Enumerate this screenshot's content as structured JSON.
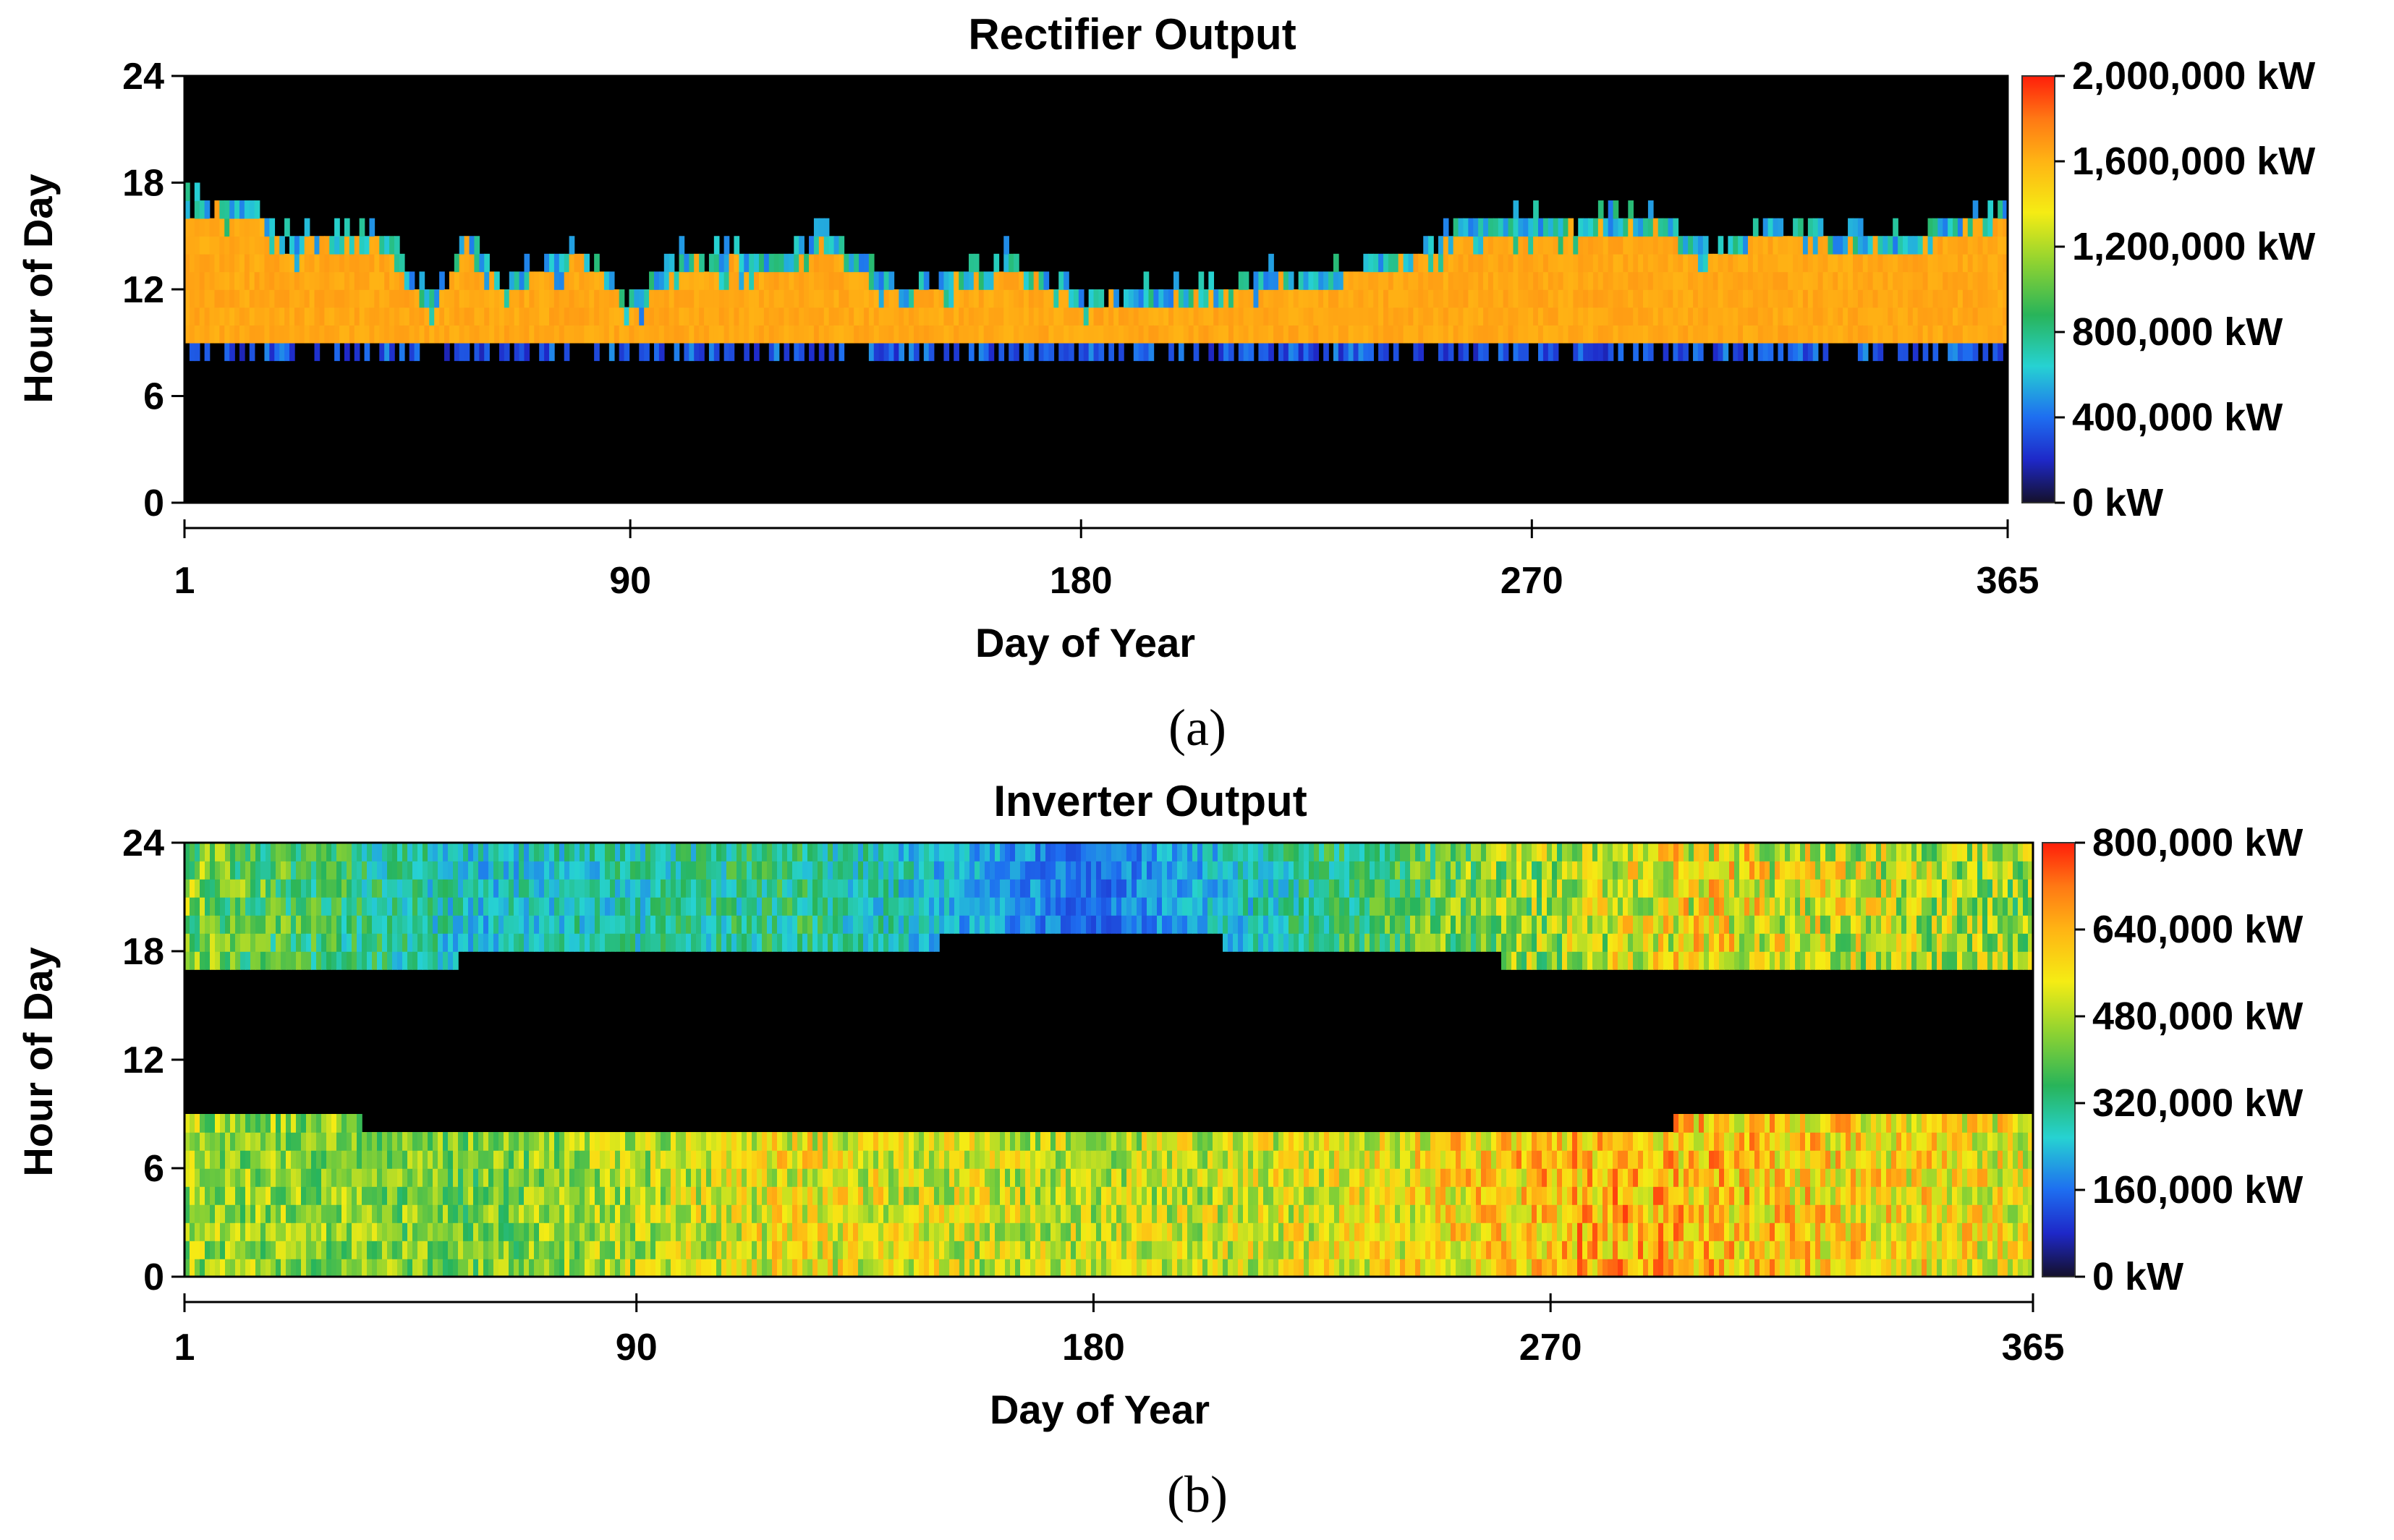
{
  "chart_data": [
    {
      "type": "heatmap",
      "panel_label": "(a)",
      "title": "Rectifier Output",
      "xlabel": "Day of Year",
      "ylabel": "Hour of Day",
      "xlim": [
        1,
        365
      ],
      "ylim": [
        0,
        24
      ],
      "x_ticks": [
        1,
        90,
        180,
        270,
        365
      ],
      "x_tick_labels": [
        "1",
        "90",
        "180",
        "270",
        "365"
      ],
      "y_ticks": [
        0,
        6,
        12,
        18,
        24
      ],
      "y_tick_labels": [
        "0",
        "6",
        "12",
        "18",
        "24"
      ],
      "colorbar": {
        "min": 0,
        "max": 2000000,
        "unit": "kW",
        "tick_values": [
          0,
          400000,
          800000,
          1200000,
          1600000,
          2000000
        ],
        "tick_labels": [
          "0 kW",
          "400,000 kW",
          "800,000 kW",
          "1,200,000 kW",
          "1,600,000 kW",
          "2,000,000 kW"
        ]
      },
      "pattern": {
        "kind": "rectifier",
        "active_band_start_hour": 9,
        "active_level": 1650000,
        "edge_level": 700000,
        "lower_fringe_level": 350000,
        "end_hour_profile": [
          {
            "day": 1,
            "end_hour": 16.5
          },
          {
            "day": 15,
            "end_hour": 16.5
          },
          {
            "day": 20,
            "end_hour": 14.5
          },
          {
            "day": 40,
            "end_hour": 15
          },
          {
            "day": 50,
            "end_hour": 11
          },
          {
            "day": 57,
            "end_hour": 14.5
          },
          {
            "day": 65,
            "end_hour": 12
          },
          {
            "day": 80,
            "end_hour": 14
          },
          {
            "day": 90,
            "end_hour": 11
          },
          {
            "day": 100,
            "end_hour": 13.5
          },
          {
            "day": 120,
            "end_hour": 13.5
          },
          {
            "day": 128,
            "end_hour": 15
          },
          {
            "day": 145,
            "end_hour": 11.5
          },
          {
            "day": 165,
            "end_hour": 13.5
          },
          {
            "day": 180,
            "end_hour": 11.5
          },
          {
            "day": 200,
            "end_hour": 11.5
          },
          {
            "day": 215,
            "end_hour": 12.5
          },
          {
            "day": 230,
            "end_hour": 12.5
          },
          {
            "day": 250,
            "end_hour": 14
          },
          {
            "day": 258,
            "end_hour": 15.5
          },
          {
            "day": 280,
            "end_hour": 15.5
          },
          {
            "day": 295,
            "end_hour": 16
          },
          {
            "day": 305,
            "end_hour": 14
          },
          {
            "day": 320,
            "end_hour": 15.5
          },
          {
            "day": 345,
            "end_hour": 14.5
          },
          {
            "day": 365,
            "end_hour": 16.5
          }
        ]
      }
    },
    {
      "type": "heatmap",
      "panel_label": "(b)",
      "title": "Inverter Output",
      "xlabel": "Day of Year",
      "ylabel": "Hour of Day",
      "xlim": [
        1,
        365
      ],
      "ylim": [
        0,
        24
      ],
      "x_ticks": [
        1,
        90,
        180,
        270,
        365
      ],
      "x_tick_labels": [
        "1",
        "90",
        "180",
        "270",
        "365"
      ],
      "y_ticks": [
        0,
        6,
        12,
        18,
        24
      ],
      "y_tick_labels": [
        "0",
        "6",
        "12",
        "18",
        "24"
      ],
      "colorbar": {
        "min": 0,
        "max": 800000,
        "unit": "kW",
        "tick_values": [
          0,
          160000,
          320000,
          480000,
          640000,
          800000
        ],
        "tick_labels": [
          "0 kW",
          "160,000 kW",
          "320,000 kW",
          "480,000 kW",
          "640,000 kW",
          "800,000 kW"
        ]
      },
      "pattern": {
        "kind": "inverter",
        "off_band_start_profile": [
          {
            "day": 1,
            "hour": 9
          },
          {
            "day": 70,
            "hour": 8
          },
          {
            "day": 75,
            "hour": 7.5
          },
          {
            "day": 290,
            "hour": 7.5
          },
          {
            "day": 295,
            "hour": 8.5
          },
          {
            "day": 365,
            "hour": 9
          }
        ],
        "off_band_end_profile": [
          {
            "day": 1,
            "hour": 17
          },
          {
            "day": 55,
            "hour": 17.5
          },
          {
            "day": 150,
            "hour": 18.5
          },
          {
            "day": 205,
            "hour": 18.5
          },
          {
            "day": 260,
            "hour": 17.5
          },
          {
            "day": 365,
            "hour": 17
          }
        ],
        "evening_level_profile": [
          {
            "day": 1,
            "value": 430000
          },
          {
            "day": 60,
            "value": 250000
          },
          {
            "day": 120,
            "value": 330000
          },
          {
            "day": 180,
            "value": 150000
          },
          {
            "day": 240,
            "value": 380000
          },
          {
            "day": 300,
            "value": 560000
          },
          {
            "day": 365,
            "value": 450000
          }
        ],
        "morning_level_profile": [
          {
            "day": 1,
            "value": 480000
          },
          {
            "day": 60,
            "value": 430000
          },
          {
            "day": 120,
            "value": 560000
          },
          {
            "day": 180,
            "value": 500000
          },
          {
            "day": 240,
            "value": 560000
          },
          {
            "day": 280,
            "value": 650000
          },
          {
            "day": 365,
            "value": 560000
          }
        ]
      }
    }
  ]
}
